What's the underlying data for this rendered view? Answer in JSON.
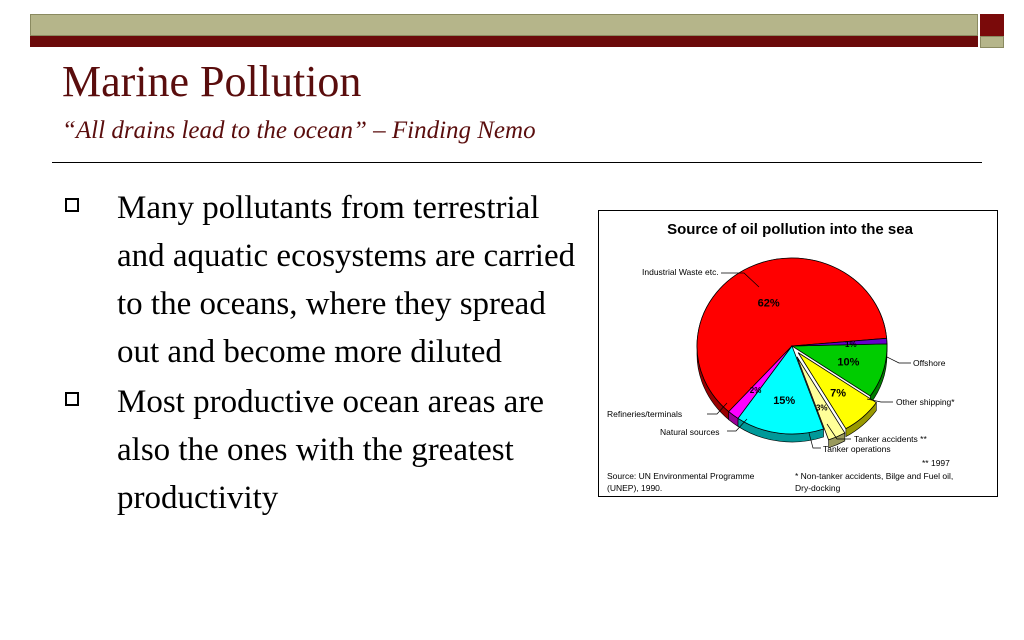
{
  "slide": {
    "title": "Marine Pollution",
    "subtitle": "“All drains lead to the ocean” – Finding Nemo",
    "bullets": [
      "Many pollutants from terrestrial and aquatic ecosystems are carried to the oceans, where they spread out and become more diluted",
      "Most productive ocean areas are also the ones with the greatest productivity"
    ]
  },
  "colors": {
    "accent_dark_red": "#6b0a0a",
    "accent_olive": "#b5b58a",
    "title_color": "#5a0d0d"
  },
  "chart_data": {
    "type": "pie",
    "title": "Source of oil pollution into the sea",
    "slices": [
      {
        "label": "Industrial Waste etc.",
        "value": 62,
        "value_label": "62%",
        "color": "#ff0000"
      },
      {
        "label": "Offshore",
        "value": 2,
        "value_label": "2%",
        "color": "#ff00ff"
      },
      {
        "label": "Other shipping*",
        "value": 15,
        "value_label": "15%",
        "color": "#00ffff"
      },
      {
        "label": "Tanker accidents **",
        "value": 3,
        "value_label": "3%",
        "color": "#ffff99"
      },
      {
        "label": "Tanker operations",
        "value": 7,
        "value_label": "7%",
        "color": "#ffff00"
      },
      {
        "label": "Natural sources",
        "value": 10,
        "value_label": "10%",
        "color": "#00cc00"
      },
      {
        "label": "Refineries/terminals",
        "value": 1,
        "value_label": "1%",
        "color": "#6600cc"
      }
    ],
    "source": "Source: UN Environmental Programme (UNEP), 1990.",
    "footnotes": [
      "** 1997",
      "* Non-tanker accidents, Bilge and Fuel oil, Dry-docking"
    ]
  }
}
